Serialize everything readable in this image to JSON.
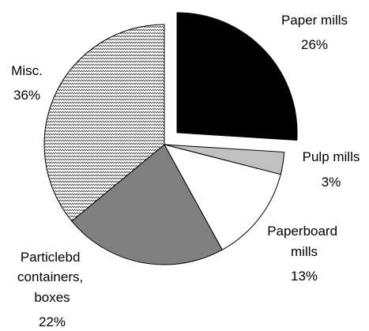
{
  "chart_data": {
    "type": "pie",
    "title": "",
    "slices": [
      {
        "label_lines": [
          "Paper mills"
        ],
        "percent_label": "26%",
        "value": 26,
        "color": "#000000",
        "pattern": "solid",
        "exploded": true
      },
      {
        "label_lines": [
          "Pulp mills"
        ],
        "percent_label": "3%",
        "value": 3,
        "color": "#c0c0c0",
        "pattern": "solid",
        "exploded": false
      },
      {
        "label_lines": [
          "Paperboard",
          "mills"
        ],
        "percent_label": "13%",
        "value": 13,
        "color": "#ffffff",
        "pattern": "solid",
        "exploded": false
      },
      {
        "label_lines": [
          "Particlebd",
          "containers,",
          "boxes"
        ],
        "percent_label": "22%",
        "value": 22,
        "color": "#808080",
        "pattern": "solid",
        "exploded": false
      },
      {
        "label_lines": [
          "Misc."
        ],
        "percent_label": "36%",
        "value": 36,
        "color": "#ffffff",
        "pattern": "zigzag",
        "exploded": false
      }
    ],
    "start_angle_deg": 0,
    "direction": "clockwise",
    "legend": "none",
    "labels_outside": true
  }
}
